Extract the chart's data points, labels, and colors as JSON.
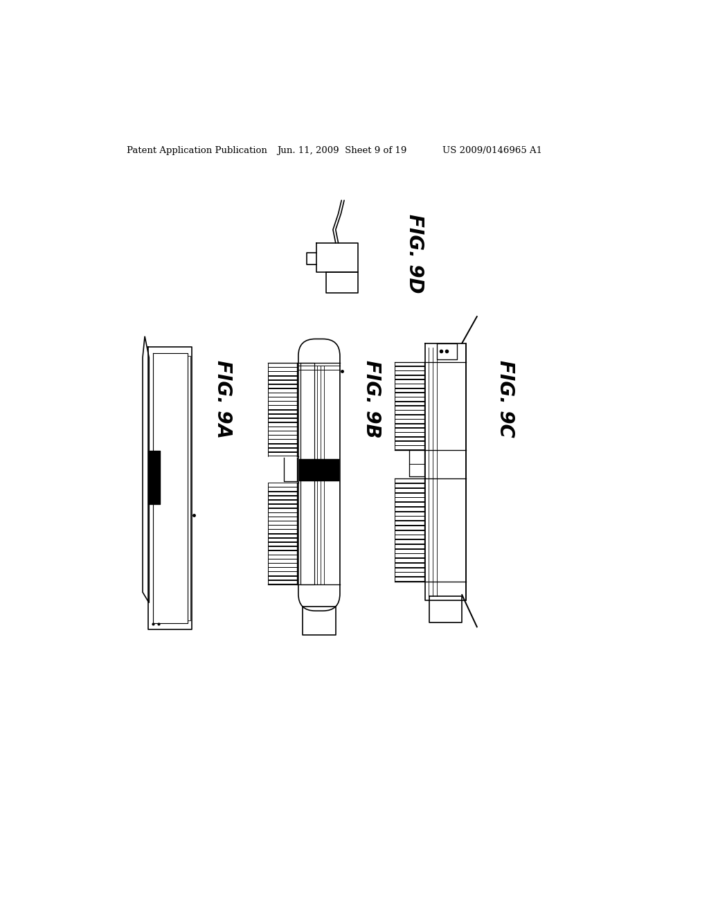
{
  "header_left": "Patent Application Publication",
  "header_center": "Jun. 11, 2009  Sheet 9 of 19",
  "header_right": "US 2009/0146965 A1",
  "bg_color": "#ffffff",
  "fg_color": "#000000",
  "lw": 1.2
}
